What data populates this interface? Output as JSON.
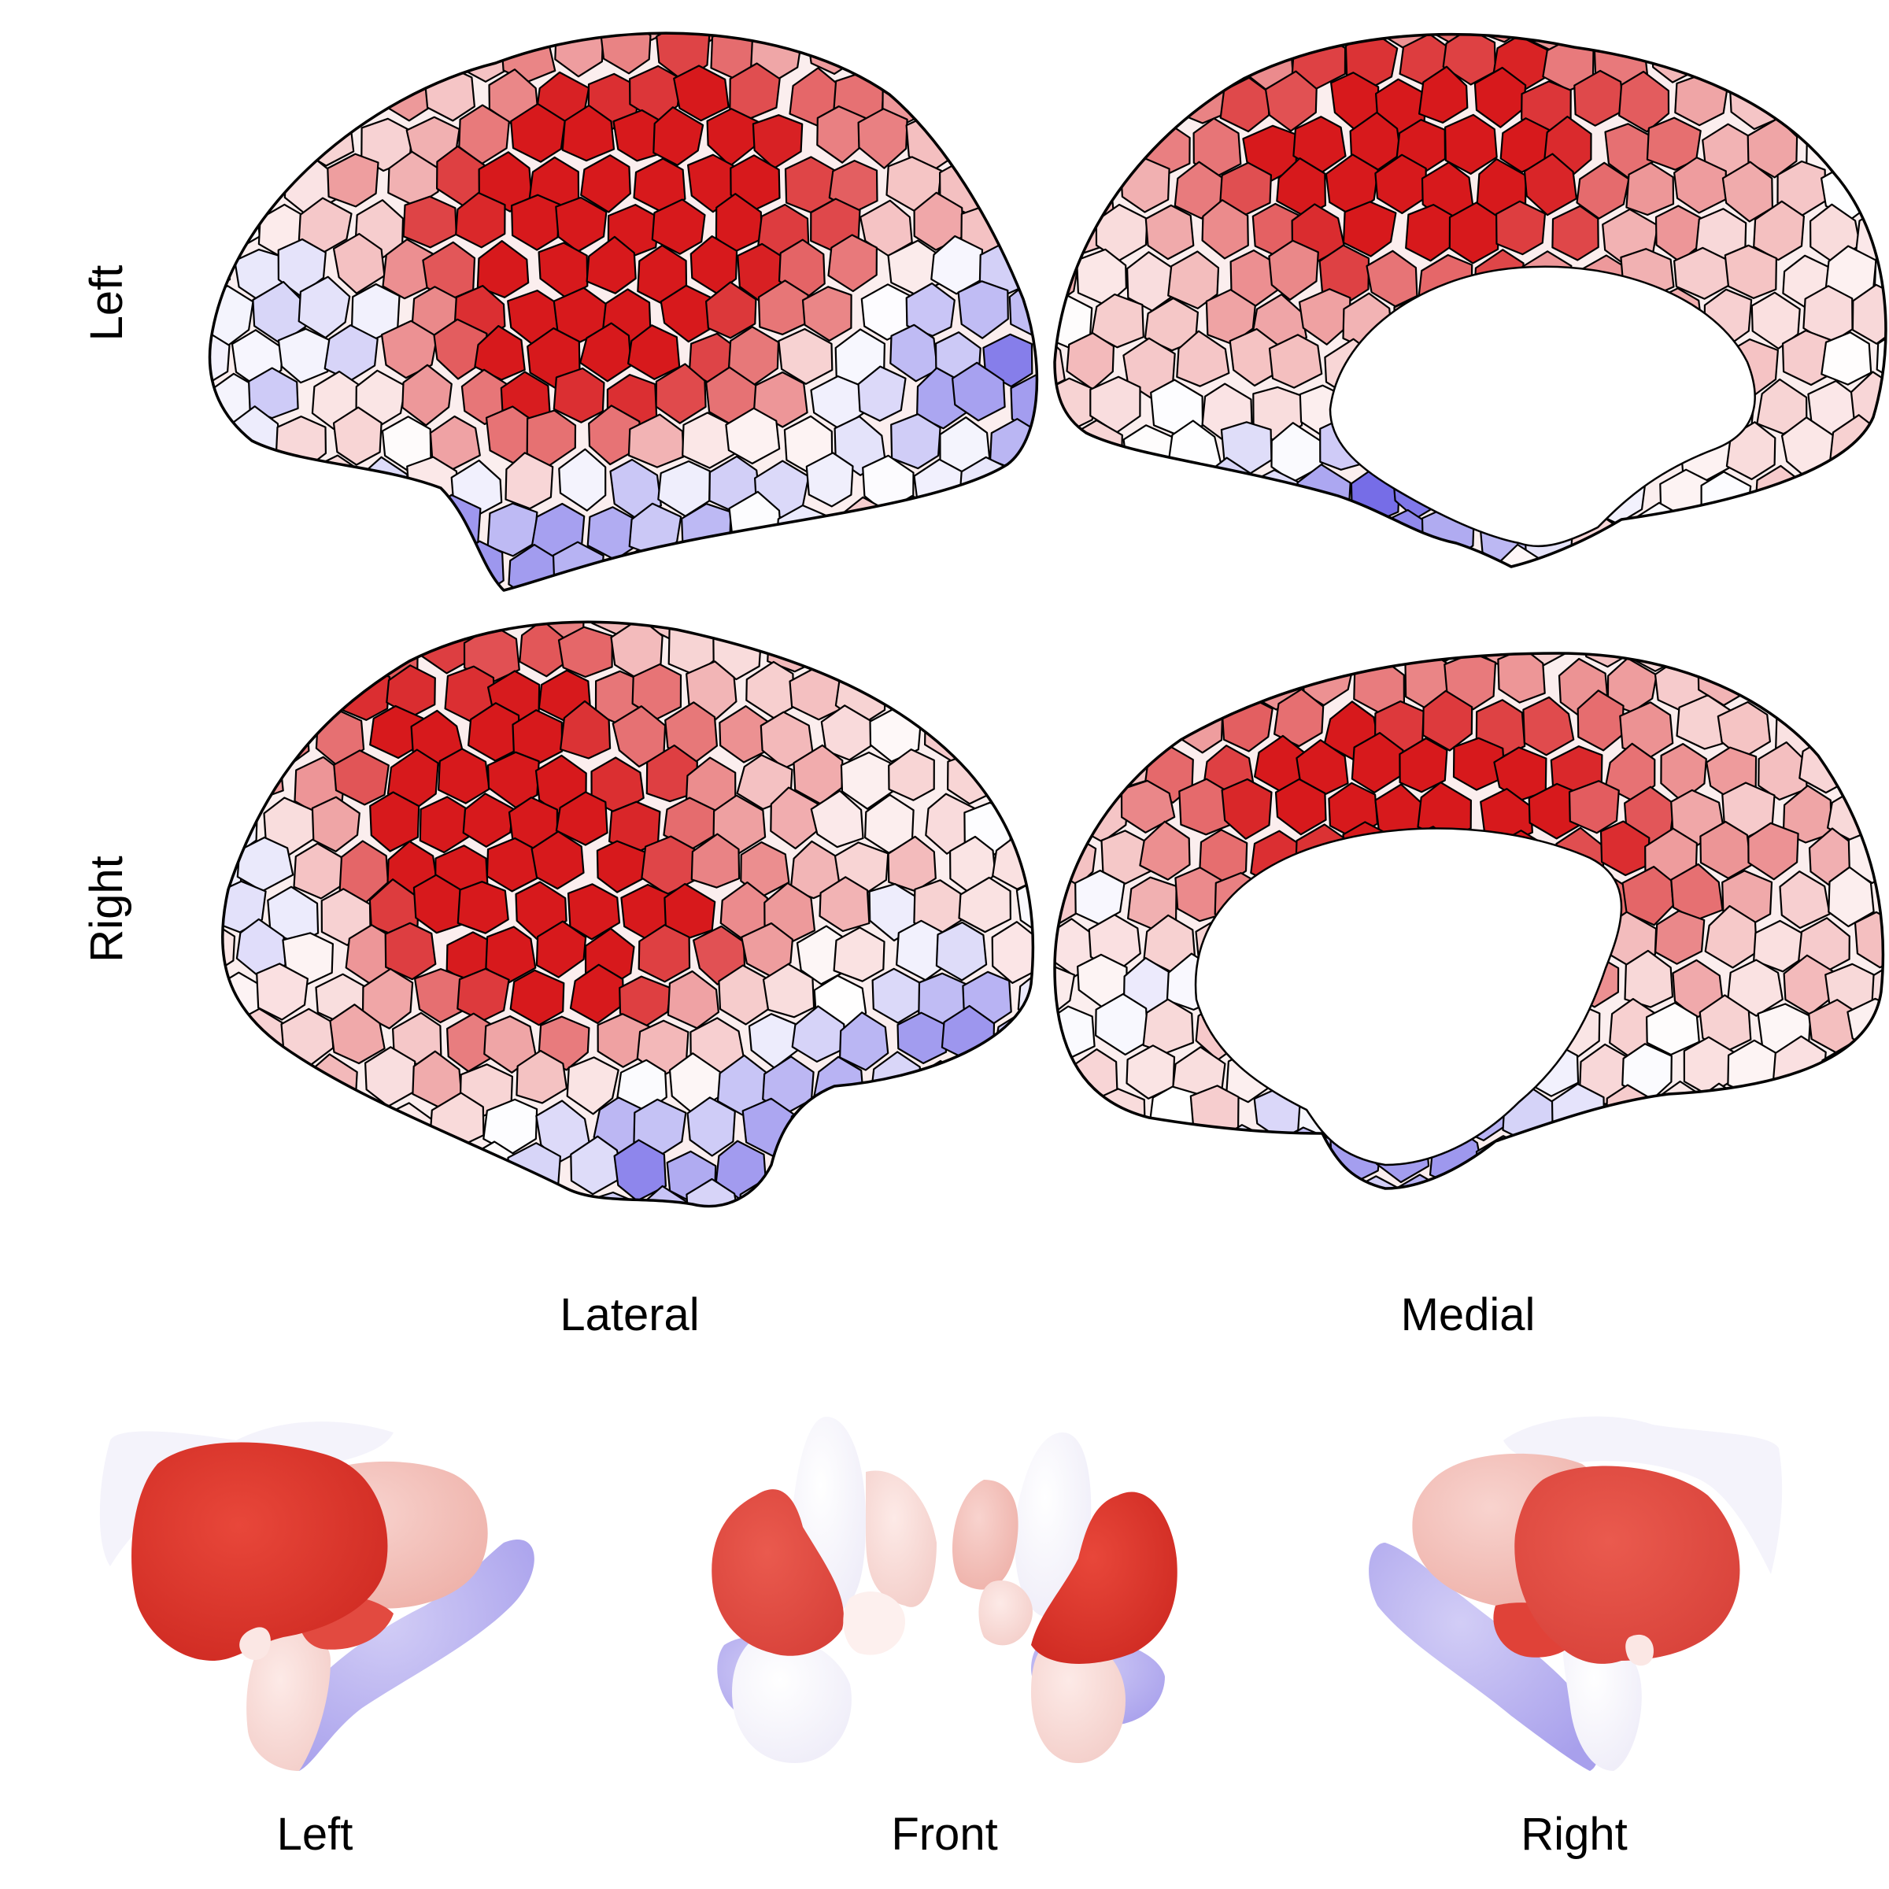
{
  "labels": {
    "row_left": "Left",
    "row_right": "Right",
    "col_lateral": "Lateral",
    "col_medial": "Medial",
    "sub_left": "Left",
    "sub_front": "Front",
    "sub_right": "Right"
  },
  "colors": {
    "positive_max": "#d7191c",
    "neutral": "#ffffff",
    "negative_max": "#4b3fe0",
    "outline": "#000000"
  },
  "icons": {
    "surface": "brain-cortical-surface",
    "subcortex": "subcortical-structures"
  },
  "views": [
    {
      "hemisphere": "Left",
      "view": "Lateral"
    },
    {
      "hemisphere": "Left",
      "view": "Medial"
    },
    {
      "hemisphere": "Right",
      "view": "Lateral"
    },
    {
      "hemisphere": "Right",
      "view": "Medial"
    }
  ],
  "subcortical_views": [
    "Left",
    "Front",
    "Right"
  ]
}
